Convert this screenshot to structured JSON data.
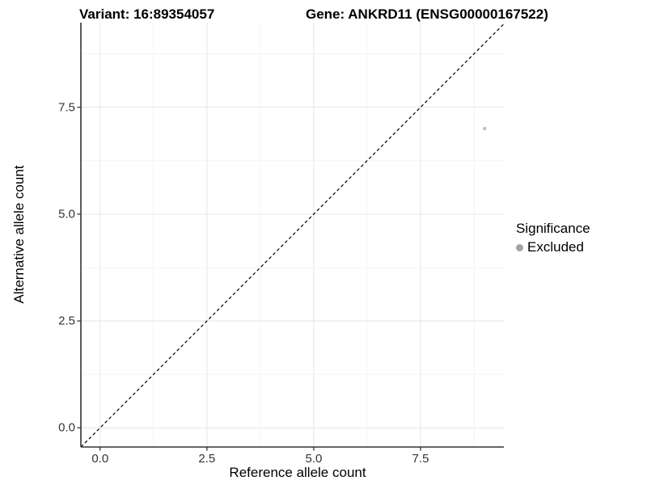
{
  "titles": {
    "left": "Variant: 16:89354057",
    "right": "Gene: ANKRD11 (ENSG00000167522)"
  },
  "legend": {
    "title": "Significance",
    "items": [
      {
        "label": "Excluded",
        "color": "#a3a3a3"
      }
    ]
  },
  "chart_data": {
    "type": "scatter",
    "title": "",
    "xlabel": "Reference allele count",
    "ylabel": "Alternative allele count",
    "xlim": [
      -0.45,
      9.45
    ],
    "ylim": [
      -0.45,
      9.48
    ],
    "x_major_ticks": [
      0,
      2.5,
      5,
      7.5
    ],
    "x_tick_labels": [
      "0.0",
      "2.5",
      "5.0",
      "7.5"
    ],
    "y_major_ticks": [
      0,
      2.5,
      5,
      7.5
    ],
    "y_tick_labels": [
      "0.0",
      "2.5",
      "5.0",
      "7.5"
    ],
    "x_minor_ticks": [
      1.25,
      3.75,
      6.25,
      8.75
    ],
    "y_minor_ticks": [
      1.25,
      3.75,
      6.25,
      8.75
    ],
    "grid": true,
    "legend_position": "right",
    "series": [
      {
        "name": "Excluded",
        "points": [
          {
            "x": 9,
            "y": 7
          }
        ],
        "color": "#c2c2c2",
        "radius": 2.3
      }
    ],
    "reference_line": {
      "kind": "abline",
      "intercept": 0,
      "slope": 1,
      "style": "dashed",
      "color": "#000000"
    },
    "colors": {
      "grid_major": "#e6e6e6",
      "grid_minor": "#f3f3f3",
      "axis_line": "#333333",
      "tick_mark": "#333333",
      "tick_text": "#333333"
    }
  }
}
